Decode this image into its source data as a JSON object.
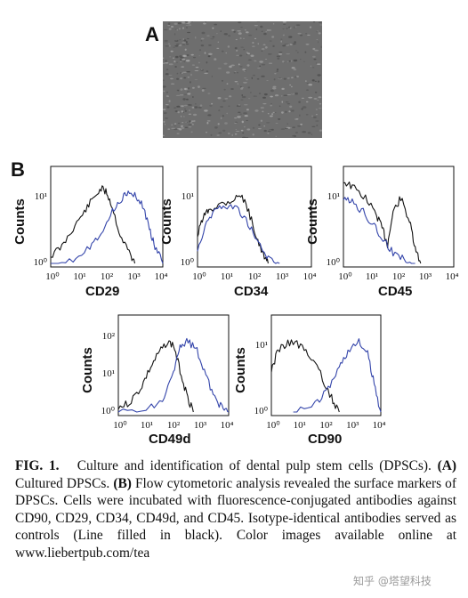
{
  "panel_a": {
    "letter": "A"
  },
  "panel_b": {
    "letter": "B"
  },
  "histograms": [
    {
      "marker": "CD29",
      "ylabel": "Counts",
      "yticks": [
        "10⁰",
        "10¹"
      ],
      "xticks": [
        "10⁰",
        "10¹",
        "10²",
        "10³",
        "10⁴"
      ]
    },
    {
      "marker": "CD34",
      "ylabel": "Counts",
      "yticks": [
        "10⁰",
        "10¹"
      ],
      "xticks": [
        "10⁰",
        "10¹",
        "10²",
        "10³",
        "10⁴"
      ]
    },
    {
      "marker": "CD45",
      "ylabel": "Counts",
      "yticks": [
        "10⁰",
        "10¹"
      ],
      "xticks": [
        "10⁰",
        "10¹",
        "10²",
        "10³",
        "10⁴"
      ]
    },
    {
      "marker": "CD49d",
      "ylabel": "Counts",
      "yticks": [
        "10⁰",
        "10¹",
        "10²"
      ],
      "xticks": [
        "10⁰",
        "10¹",
        "10²",
        "10³",
        "10⁴"
      ]
    },
    {
      "marker": "CD90",
      "ylabel": "Counts",
      "yticks": [
        "10⁰",
        "10¹"
      ],
      "xticks": [
        "10⁰",
        "10¹",
        "10²",
        "10³",
        "10⁴"
      ]
    }
  ],
  "colors": {
    "control": "#111111",
    "sample": "#3344aa",
    "micrograph": "#6e6e6e"
  },
  "caption": {
    "fig_label": "FIG. 1.",
    "text_1": "Culture and identification of dental pulp stem cells (DPSCs).",
    "a_label": "(A)",
    "text_2": "Cultured DPSCs.",
    "b_label": "(B)",
    "text_3": "Flow cytometoric analysis revealed the surface markers of DPSCs. Cells were incubated with fluorescence-conjugated antibodies against CD90, CD29, CD34, CD49d, and CD45. Isotype-identical antibodies served as controls (Line filled in black). Color images available online at www.liebertpub.com/tea"
  },
  "watermark": "知乎 @塔望科技"
}
